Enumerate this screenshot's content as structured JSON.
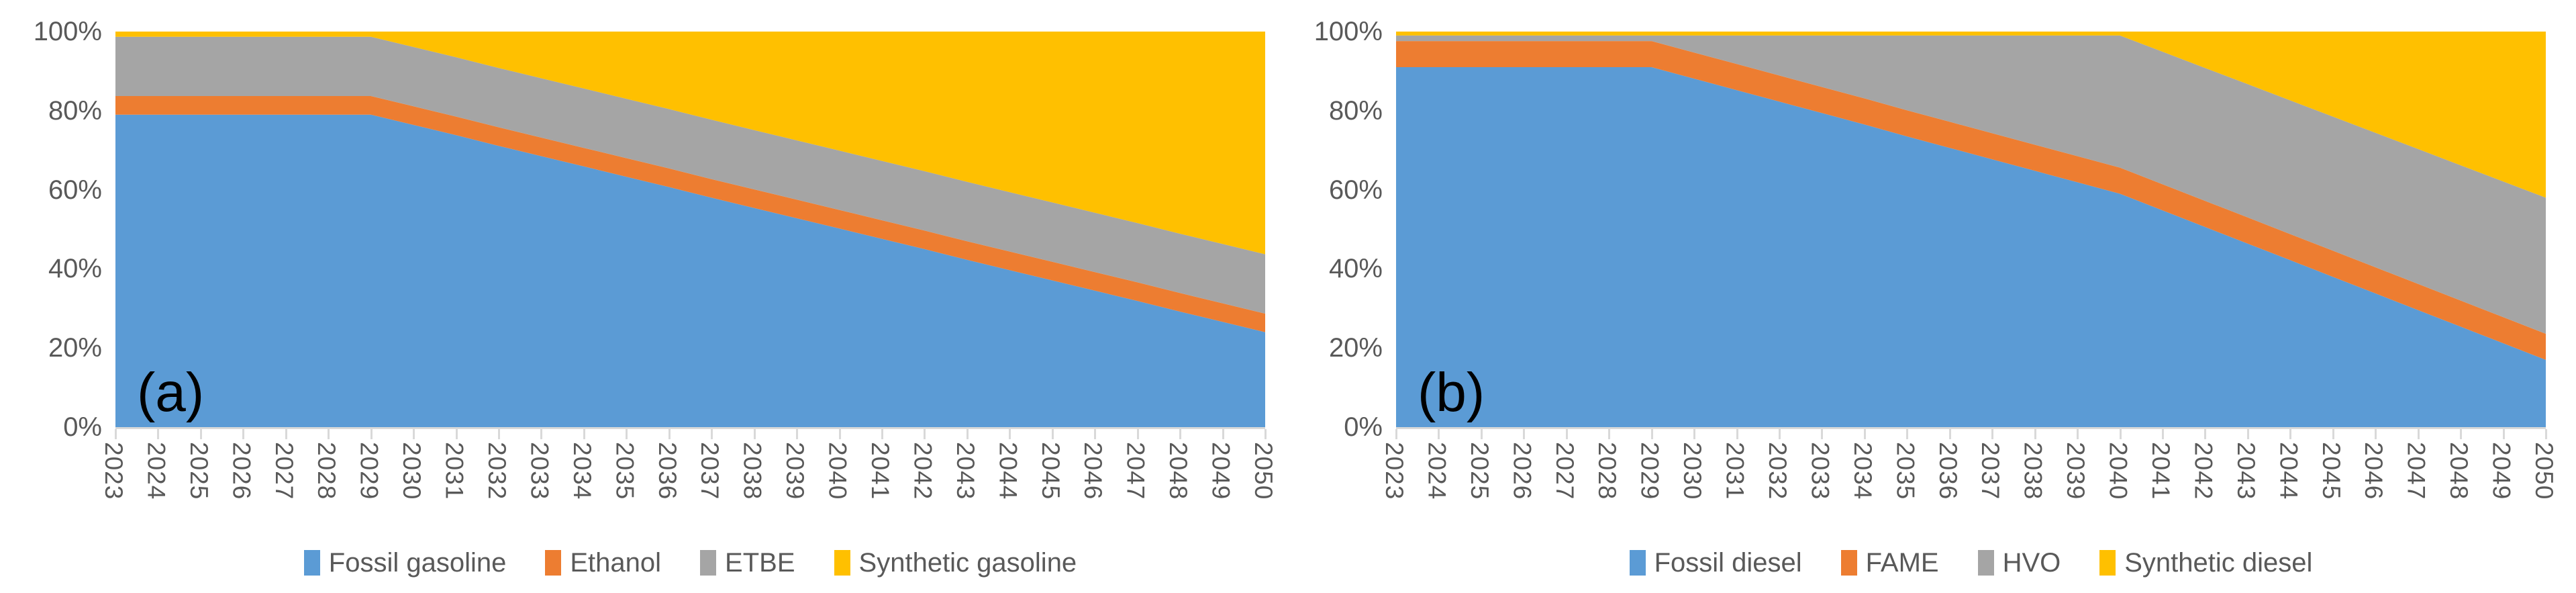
{
  "figure_background": "#ffffff",
  "axis_color": "#d9d9d9",
  "text_color": "#595959",
  "panel_label_color": "#000000",
  "y_axis_tick_labels": [
    "0%",
    "20%",
    "40%",
    "60%",
    "80%",
    "100%"
  ],
  "chart_data": [
    {
      "type": "area",
      "stacked": true,
      "percent_stacked": true,
      "panel_label": "(a)",
      "legend_position": "bottom",
      "grid": false,
      "ylim": [
        0,
        100
      ],
      "x": [
        2023,
        2024,
        2025,
        2026,
        2027,
        2028,
        2029,
        2030,
        2031,
        2032,
        2033,
        2034,
        2035,
        2036,
        2037,
        2038,
        2039,
        2040,
        2041,
        2042,
        2043,
        2044,
        2045,
        2046,
        2047,
        2048,
        2049,
        2050
      ],
      "series": [
        {
          "name": "Fossil gasoline",
          "color": "#5B9BD5",
          "values": [
            79,
            79,
            79,
            79,
            79,
            79,
            79,
            76.4,
            73.8,
            71.1,
            68.5,
            65.9,
            63.3,
            60.7,
            58.0,
            55.4,
            52.8,
            50.2,
            47.6,
            45.0,
            42.3,
            39.7,
            37.1,
            34.5,
            31.9,
            29.2,
            26.6,
            24.0
          ]
        },
        {
          "name": "Ethanol",
          "color": "#ED7D31",
          "values": [
            4.7,
            4.7,
            4.7,
            4.7,
            4.7,
            4.7,
            4.7,
            4.7,
            4.7,
            4.7,
            4.7,
            4.7,
            4.7,
            4.7,
            4.7,
            4.7,
            4.7,
            4.7,
            4.7,
            4.7,
            4.7,
            4.7,
            4.7,
            4.7,
            4.7,
            4.7,
            4.7,
            4.7
          ]
        },
        {
          "name": "ETBE",
          "color": "#A5A5A5",
          "values": [
            15,
            15,
            15,
            15,
            15,
            15,
            15,
            15,
            15,
            15,
            15,
            15,
            15,
            15,
            15,
            15,
            15,
            15,
            15,
            15,
            15,
            15,
            15,
            15,
            15,
            15,
            15,
            15
          ]
        },
        {
          "name": "Synthetic gasoline",
          "color": "#FFC000",
          "values": [
            1.3,
            1.3,
            1.3,
            1.3,
            1.3,
            1.3,
            1.3,
            3.9,
            6.5,
            9.2,
            11.8,
            14.4,
            17.0,
            19.6,
            22.3,
            24.9,
            27.5,
            30.1,
            32.7,
            35.3,
            38.0,
            40.6,
            43.2,
            45.8,
            48.4,
            51.1,
            53.7,
            56.3
          ]
        }
      ]
    },
    {
      "type": "area",
      "stacked": true,
      "percent_stacked": true,
      "panel_label": "(b)",
      "legend_position": "bottom",
      "grid": false,
      "ylim": [
        0,
        100
      ],
      "x": [
        2023,
        2024,
        2025,
        2026,
        2027,
        2028,
        2029,
        2030,
        2031,
        2032,
        2033,
        2034,
        2035,
        2036,
        2037,
        2038,
        2039,
        2040,
        2041,
        2042,
        2043,
        2044,
        2045,
        2046,
        2047,
        2048,
        2049,
        2050
      ],
      "series": [
        {
          "name": "Fossil diesel",
          "color": "#5B9BD5",
          "values": [
            91,
            91,
            91,
            91,
            91,
            91,
            91,
            88.1,
            85.2,
            82.3,
            79.4,
            76.5,
            73.5,
            70.6,
            67.7,
            64.8,
            61.9,
            59.0,
            54.8,
            50.6,
            46.4,
            42.2,
            38.0,
            33.8,
            29.6,
            25.4,
            21.2,
            17.0
          ]
        },
        {
          "name": "FAME",
          "color": "#ED7D31",
          "values": [
            6.6,
            6.6,
            6.6,
            6.6,
            6.6,
            6.6,
            6.6,
            6.6,
            6.6,
            6.6,
            6.6,
            6.6,
            6.6,
            6.6,
            6.6,
            6.6,
            6.6,
            6.6,
            6.6,
            6.6,
            6.6,
            6.6,
            6.6,
            6.6,
            6.6,
            6.6,
            6.6,
            6.6
          ]
        },
        {
          "name": "HVO",
          "color": "#A5A5A5",
          "values": [
            1.4,
            1.4,
            1.4,
            1.4,
            1.4,
            1.4,
            1.4,
            4.3,
            7.2,
            10.1,
            13.0,
            15.9,
            18.9,
            21.8,
            24.7,
            27.6,
            30.5,
            33.4,
            33.5,
            33.6,
            33.7,
            33.8,
            33.9,
            34.0,
            34.1,
            34.2,
            34.3,
            34.4
          ]
        },
        {
          "name": "Synthetic diesel",
          "color": "#FFC000",
          "values": [
            1.0,
            1.0,
            1.0,
            1.0,
            1.0,
            1.0,
            1.0,
            1.0,
            1.0,
            1.0,
            1.0,
            1.0,
            1.0,
            1.0,
            1.0,
            1.0,
            1.0,
            1.0,
            5.1,
            9.2,
            13.3,
            17.4,
            21.5,
            25.6,
            29.7,
            33.8,
            37.9,
            42.0
          ]
        }
      ]
    }
  ]
}
